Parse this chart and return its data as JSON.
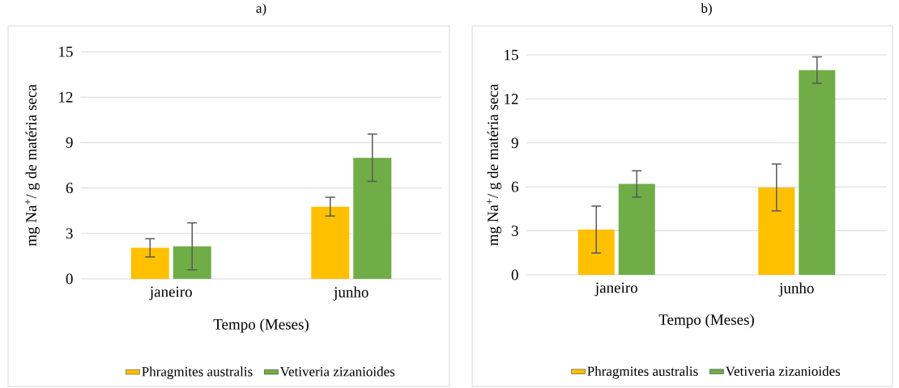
{
  "chart_data": [
    {
      "type": "bar",
      "title": "a)",
      "xlabel": "Tempo (Meses)",
      "ylabel": "mg Na$^{+}$/ g de matéria seca",
      "categories": [
        "janeiro",
        "junho"
      ],
      "series": [
        {
          "name": "Phragmites australis",
          "color": "#ffc000",
          "values": [
            2.05,
            4.77
          ],
          "errors": [
            0.6,
            0.62
          ]
        },
        {
          "name": "Vetiveria zizanioides",
          "color": "#70ad47",
          "values": [
            2.15,
            8.0
          ],
          "errors": [
            1.55,
            1.56
          ]
        }
      ],
      "ylim": [
        0,
        15
      ],
      "yticks": [
        0,
        3,
        6,
        9,
        12,
        15
      ],
      "grid": "y",
      "legend": "bottom"
    },
    {
      "type": "bar",
      "title": "b)",
      "xlabel": "Tempo (Meses)",
      "ylabel": "mg Na$^{+}$/ g de matéria seca",
      "categories": [
        "janeiro",
        "junho"
      ],
      "series": [
        {
          "name": "Phragmites australis",
          "color": "#ffc000",
          "values": [
            3.09,
            5.96
          ],
          "errors": [
            1.6,
            1.6
          ]
        },
        {
          "name": "Vetiveria zizanioides",
          "color": "#70ad47",
          "values": [
            6.2,
            13.97
          ],
          "errors": [
            0.9,
            0.9
          ]
        }
      ],
      "ylim": [
        0,
        15
      ],
      "yticks": [
        0,
        3,
        6,
        9,
        12,
        15
      ],
      "grid": "y",
      "legend": "bottom"
    }
  ]
}
